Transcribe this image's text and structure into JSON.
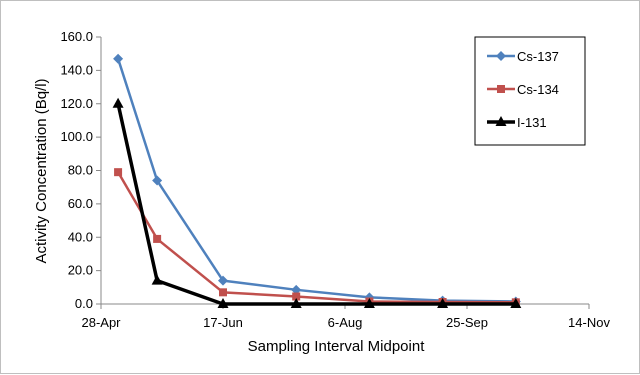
{
  "chart_data": {
    "type": "line",
    "xlabel": "Sampling Interval Midpoint",
    "ylabel": "Activity Concentration (Bq/l)",
    "ylim": [
      0,
      160
    ],
    "yticks": [
      "0.0",
      "20.0",
      "40.0",
      "60.0",
      "80.0",
      "100.0",
      "120.0",
      "140.0",
      "160.0"
    ],
    "ytick_values": [
      0,
      20,
      40,
      60,
      80,
      100,
      120,
      140,
      160
    ],
    "xticks": [
      "28-Apr",
      "17-Jun",
      "6-Aug",
      "25-Sep",
      "14-Nov"
    ],
    "xlim": [
      "28-Apr",
      "14-Nov"
    ],
    "grid": "none",
    "legend_position": "top-right",
    "series": [
      {
        "name": "Cs-137",
        "color": "#4f81bd",
        "marker": "diamond",
        "x": [
          "5-May",
          "21-May",
          "17-Jun",
          "17-Jul",
          "16-Aug",
          "15-Sep",
          "15-Oct"
        ],
        "y": [
          147,
          74,
          14,
          8.5,
          4,
          2,
          1.5
        ]
      },
      {
        "name": "Cs-134",
        "color": "#c0504d",
        "marker": "square",
        "x": [
          "5-May",
          "21-May",
          "17-Jun",
          "17-Jul",
          "16-Aug",
          "15-Sep",
          "15-Oct"
        ],
        "y": [
          79,
          39,
          7,
          4.5,
          1.5,
          1.2,
          1.0
        ]
      },
      {
        "name": "I-131",
        "color": "#000000",
        "marker": "triangle",
        "x": [
          "5-May",
          "21-May",
          "17-Jun",
          "17-Jul",
          "16-Aug",
          "15-Sep",
          "15-Oct"
        ],
        "y": [
          120,
          14,
          0,
          0,
          0,
          0,
          0
        ]
      }
    ]
  }
}
